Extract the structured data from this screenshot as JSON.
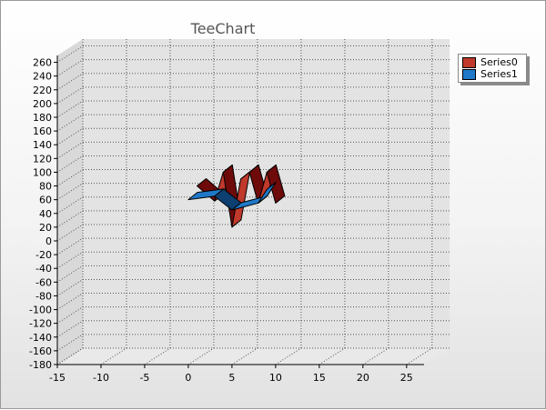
{
  "chart_data": {
    "type": "line",
    "view": "3d",
    "title": "TeeChart",
    "grid": true,
    "legend_position": "top-right",
    "xlim": [
      -15,
      27
    ],
    "ylim": [
      -180,
      270
    ],
    "x_ticks": [
      -15,
      -10,
      -5,
      0,
      5,
      10,
      15,
      20,
      25
    ],
    "y_ticks": [
      -180,
      -160,
      -140,
      -120,
      -100,
      -80,
      -60,
      -40,
      -20,
      0,
      20,
      40,
      60,
      80,
      100,
      120,
      140,
      160,
      180,
      200,
      220,
      240,
      260
    ],
    "series": [
      {
        "name": "Series0",
        "color": "#c0392b",
        "x": [
          1,
          3,
          4,
          5,
          6,
          7,
          8,
          9,
          10
        ],
        "y": [
          80,
          58,
          100,
          20,
          90,
          100,
          55,
          100,
          55
        ]
      },
      {
        "name": "Series1",
        "color": "#1f78c8",
        "x": [
          0,
          3,
          5,
          8,
          9
        ],
        "y": [
          60,
          65,
          45,
          55,
          75
        ]
      }
    ]
  }
}
